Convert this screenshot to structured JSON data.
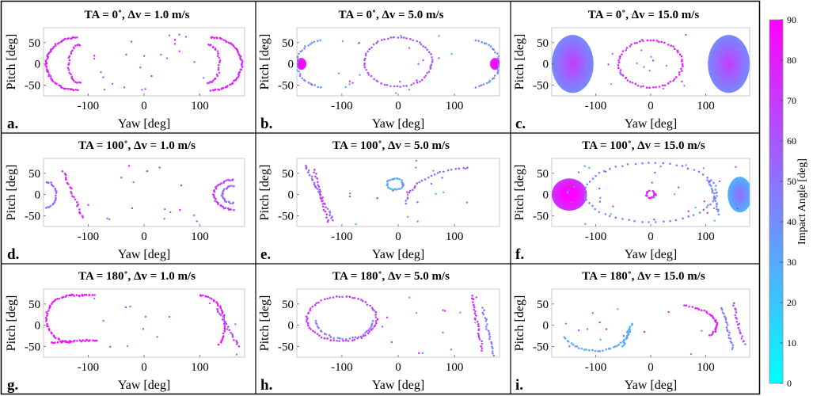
{
  "chart_data": {
    "type": "scatter",
    "colormap": {
      "low": "#00ffff",
      "high": "#ff00ff"
    },
    "colorbar": {
      "label": "Impact Angle [deg]",
      "ticks": [
        0,
        10,
        20,
        30,
        40,
        50,
        60,
        70,
        80,
        90
      ],
      "range": [
        0,
        90
      ]
    },
    "panels": [
      {
        "letter": "a.",
        "title": "TA = 0˚, Δv = 1.0 m/s",
        "xlabel": "Yaw [deg]",
        "ylabel": "Pitch [deg]",
        "xlim": [
          -180,
          180
        ],
        "ylim": [
          -75,
          85
        ],
        "xticks": [
          -100,
          0,
          100
        ],
        "yticks": [
          50,
          0,
          -50
        ],
        "features": [
          {
            "kind": "arc",
            "center": [
              -120,
              0
            ],
            "rx": 55,
            "ry": 62,
            "from": 90,
            "to": 270,
            "value": 78,
            "n": 60
          },
          {
            "kind": "arc",
            "center": [
              -115,
              0
            ],
            "rx": 20,
            "ry": 45,
            "from": 90,
            "to": 270,
            "value": 75,
            "n": 26
          },
          {
            "kind": "arc",
            "center": [
              120,
              0
            ],
            "rx": 55,
            "ry": 62,
            "from": -90,
            "to": 90,
            "value": 78,
            "n": 60
          },
          {
            "kind": "arc",
            "center": [
              115,
              0
            ],
            "rx": 20,
            "ry": 45,
            "from": -90,
            "to": 90,
            "value": 75,
            "n": 26
          },
          {
            "kind": "scatter",
            "xr": [
              -110,
              110
            ],
            "yr": [
              -70,
              70
            ],
            "vr": [
              50,
              85
            ],
            "n": 24
          }
        ]
      },
      {
        "letter": "b.",
        "title": "TA = 0˚, Δv = 5.0 m/s",
        "xlabel": "Yaw [deg]",
        "ylabel": "Pitch [deg]",
        "xlim": [
          -180,
          180
        ],
        "ylim": [
          -75,
          85
        ],
        "xticks": [
          -100,
          0,
          100
        ],
        "yticks": [
          50,
          0,
          -50
        ],
        "features": [
          {
            "kind": "arc",
            "center": [
              0,
              5
            ],
            "rx": 60,
            "ry": 58,
            "from": 0,
            "to": 360,
            "value": 60,
            "n": 64
          },
          {
            "kind": "blob",
            "center": [
              -172,
              0
            ],
            "rx": 9,
            "ry": 14,
            "value": 88
          },
          {
            "kind": "blob",
            "center": [
              172,
              0
            ],
            "rx": 9,
            "ry": 14,
            "value": 88
          },
          {
            "kind": "arc",
            "center": [
              -130,
              0
            ],
            "rx": 50,
            "ry": 55,
            "from": 100,
            "to": 260,
            "value": 40,
            "n": 30
          },
          {
            "kind": "arc",
            "center": [
              130,
              0
            ],
            "rx": 50,
            "ry": 55,
            "from": -80,
            "to": 80,
            "value": 40,
            "n": 30
          },
          {
            "kind": "scatter",
            "xr": [
              -110,
              110
            ],
            "yr": [
              -70,
              70
            ],
            "vr": [
              20,
              80
            ],
            "n": 22
          }
        ]
      },
      {
        "letter": "c.",
        "title": "TA = 0˚, Δv = 15.0 m/s",
        "xlabel": "Yaw [deg]",
        "ylabel": "Pitch [deg]",
        "xlim": [
          -180,
          180
        ],
        "ylim": [
          -75,
          85
        ],
        "xticks": [
          -100,
          0,
          100
        ],
        "yticks": [
          50,
          0,
          -50
        ],
        "features": [
          {
            "kind": "blob",
            "center": [
              -142,
              0
            ],
            "rx": 38,
            "ry": 68,
            "value": 55
          },
          {
            "kind": "blob",
            "center": [
              142,
              0
            ],
            "rx": 38,
            "ry": 68,
            "value": 55
          },
          {
            "kind": "arc",
            "center": [
              0,
              0
            ],
            "rx": 58,
            "ry": 55,
            "from": 0,
            "to": 360,
            "value": 78,
            "n": 64
          },
          {
            "kind": "scatter",
            "xr": [
              -100,
              100
            ],
            "yr": [
              -70,
              70
            ],
            "vr": [
              20,
              80
            ],
            "n": 18
          }
        ]
      },
      {
        "letter": "d.",
        "title": "TA = 100˚, Δv = 1.0 m/s",
        "xlabel": "Yaw [deg]",
        "ylabel": "Pitch [deg]",
        "xlim": [
          -180,
          180
        ],
        "ylim": [
          -75,
          85
        ],
        "xticks": [
          -100,
          0,
          100
        ],
        "yticks": [
          50,
          0,
          -50
        ],
        "features": [
          {
            "kind": "arc",
            "center": [
              -175,
              0
            ],
            "rx": 18,
            "ry": 30,
            "from": -90,
            "to": 90,
            "value": 55,
            "n": 22
          },
          {
            "kind": "arc",
            "center": [
              160,
              0
            ],
            "rx": 35,
            "ry": 35,
            "from": 90,
            "to": 270,
            "value": 70,
            "n": 34
          },
          {
            "kind": "arc",
            "center": [
              160,
              0
            ],
            "rx": 20,
            "ry": 20,
            "from": 90,
            "to": 270,
            "value": 55,
            "n": 22
          },
          {
            "kind": "line",
            "from": [
              -145,
              55
            ],
            "to": [
              -110,
              -55
            ],
            "value": 75,
            "n": 22
          },
          {
            "kind": "scatter",
            "xr": [
              -100,
              110
            ],
            "yr": [
              -70,
              75
            ],
            "vr": [
              40,
              85
            ],
            "n": 16
          }
        ]
      },
      {
        "letter": "e.",
        "title": "TA = 100˚, Δv = 5.0 m/s",
        "xlabel": "Yaw [deg]",
        "ylabel": "Pitch [deg]",
        "xlim": [
          -180,
          180
        ],
        "ylim": [
          -75,
          85
        ],
        "xticks": [
          -100,
          0,
          100
        ],
        "yticks": [
          50,
          0,
          -50
        ],
        "features": [
          {
            "kind": "arc",
            "center": [
              -5,
              25
            ],
            "rx": 14,
            "ry": 13,
            "from": 0,
            "to": 360,
            "value": 30,
            "n": 28
          },
          {
            "kind": "line",
            "from": [
              -165,
              70
            ],
            "to": [
              -115,
              -60
            ],
            "value": 55,
            "n": 30
          },
          {
            "kind": "line",
            "from": [
              -150,
              60
            ],
            "to": [
              -125,
              -65
            ],
            "value": 70,
            "n": 22
          },
          {
            "kind": "arc",
            "center": [
              145,
              -20
            ],
            "rx": 130,
            "ry": 85,
            "from": 100,
            "to": 180,
            "value": 55,
            "n": 26
          },
          {
            "kind": "scatter",
            "xr": [
              -120,
              130
            ],
            "yr": [
              -70,
              80
            ],
            "vr": [
              20,
              85
            ],
            "n": 18
          }
        ]
      },
      {
        "letter": "f.",
        "title": "TA = 100˚, Δv = 15.0 m/s",
        "xlabel": "Yaw [deg]",
        "ylabel": "Pitch [deg]",
        "xlim": [
          -180,
          180
        ],
        "ylim": [
          -75,
          85
        ],
        "xticks": [
          -100,
          0,
          100
        ],
        "yticks": [
          50,
          0,
          -50
        ],
        "features": [
          {
            "kind": "blob",
            "center": [
              -148,
              0
            ],
            "rx": 32,
            "ry": 38,
            "value": 85
          },
          {
            "kind": "blob",
            "center": [
              162,
              0
            ],
            "rx": 22,
            "ry": 42,
            "value": 40
          },
          {
            "kind": "arc",
            "center": [
              0,
              0
            ],
            "rx": 8,
            "ry": 8,
            "from": 0,
            "to": 360,
            "value": 78,
            "n": 16
          },
          {
            "kind": "arc",
            "center": [
              0,
              5
            ],
            "rx": 120,
            "ry": 70,
            "from": 0,
            "to": 360,
            "value": 45,
            "n": 60
          },
          {
            "kind": "line",
            "from": [
              105,
              35
            ],
            "to": [
              125,
              -45
            ],
            "value": 40,
            "n": 20
          },
          {
            "kind": "scatter",
            "xr": [
              -170,
              170
            ],
            "yr": [
              -70,
              80
            ],
            "vr": [
              20,
              85
            ],
            "n": 40
          }
        ]
      },
      {
        "letter": "g.",
        "title": "TA = 180˚, Δv = 1.0 m/s",
        "xlabel": "Yaw [deg]",
        "ylabel": "Pitch [deg]",
        "xlim": [
          -180,
          180
        ],
        "ylim": [
          -75,
          85
        ],
        "xticks": [
          -100,
          0,
          100
        ],
        "yticks": [
          50,
          0,
          -50
        ],
        "features": [
          {
            "kind": "arc",
            "center": [
              -130,
              15
            ],
            "rx": 45,
            "ry": 55,
            "from": 90,
            "to": 270,
            "value": 82,
            "n": 40
          },
          {
            "kind": "line",
            "from": [
              -165,
              -40
            ],
            "to": [
              -85,
              -35
            ],
            "value": 82,
            "n": 24
          },
          {
            "kind": "line",
            "from": [
              -130,
              70
            ],
            "to": [
              -90,
              70
            ],
            "value": 82,
            "n": 14
          },
          {
            "kind": "arc",
            "center": [
              100,
              0
            ],
            "rx": 45,
            "ry": 70,
            "from": -40,
            "to": 90,
            "value": 82,
            "n": 34
          },
          {
            "kind": "line",
            "from": [
              130,
              40
            ],
            "to": [
              170,
              -50
            ],
            "value": 65,
            "n": 22
          },
          {
            "kind": "scatter",
            "xr": [
              -120,
              170
            ],
            "yr": [
              -70,
              70
            ],
            "vr": [
              40,
              85
            ],
            "n": 14
          }
        ]
      },
      {
        "letter": "h.",
        "title": "TA = 180˚, Δv = 5.0 m/s",
        "xlabel": "Yaw [deg]",
        "ylabel": "Pitch [deg]",
        "xlim": [
          -180,
          180
        ],
        "ylim": [
          -75,
          85
        ],
        "xticks": [
          -100,
          0,
          100
        ],
        "yticks": [
          50,
          0,
          -50
        ],
        "features": [
          {
            "kind": "arc",
            "center": [
              -100,
              15
            ],
            "rx": 62,
            "ry": 52,
            "from": 0,
            "to": 360,
            "value": 70,
            "n": 70
          },
          {
            "kind": "arc",
            "center": [
              -95,
              10
            ],
            "rx": 50,
            "ry": 42,
            "from": 180,
            "to": 360,
            "value": 45,
            "n": 30
          },
          {
            "kind": "line",
            "from": [
              130,
              70
            ],
            "to": [
              150,
              -60
            ],
            "value": 70,
            "n": 26
          },
          {
            "kind": "line",
            "from": [
              150,
              40
            ],
            "to": [
              170,
              -70
            ],
            "value": 45,
            "n": 22
          },
          {
            "kind": "scatter",
            "xr": [
              -30,
              170
            ],
            "yr": [
              -70,
              80
            ],
            "vr": [
              20,
              85
            ],
            "n": 14
          }
        ]
      },
      {
        "letter": "i.",
        "title": "TA = 180˚, Δv = 15.0 m/s",
        "xlabel": "Yaw [deg]",
        "ylabel": "Pitch [deg]",
        "xlim": [
          -180,
          180
        ],
        "ylim": [
          -75,
          85
        ],
        "xticks": [
          -100,
          0,
          100
        ],
        "yticks": [
          50,
          0,
          -50
        ],
        "features": [
          {
            "kind": "arc",
            "center": [
              -100,
              -5
            ],
            "rx": 62,
            "ry": 55,
            "from": 205,
            "to": 355,
            "value": 30,
            "n": 34
          },
          {
            "kind": "line",
            "from": [
              -50,
              -50
            ],
            "to": [
              -35,
              5
            ],
            "value": 25,
            "n": 16
          },
          {
            "kind": "arc",
            "center": [
              30,
              0
            ],
            "rx": 90,
            "ry": 50,
            "from": -30,
            "to": 70,
            "value": 80,
            "n": 30
          },
          {
            "kind": "line",
            "from": [
              130,
              40
            ],
            "to": [
              150,
              -55
            ],
            "value": 45,
            "n": 22
          },
          {
            "kind": "line",
            "from": [
              150,
              50
            ],
            "to": [
              170,
              -45
            ],
            "value": 65,
            "n": 20
          },
          {
            "kind": "scatter",
            "xr": [
              -170,
              170
            ],
            "yr": [
              -70,
              60
            ],
            "vr": [
              20,
              85
            ],
            "n": 14
          }
        ]
      }
    ]
  }
}
